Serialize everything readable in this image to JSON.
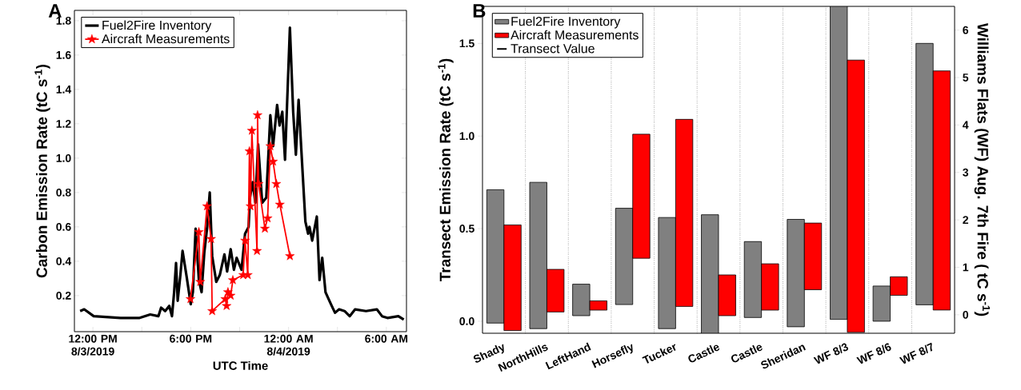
{
  "chart_data": [
    {
      "type": "line",
      "title": "A",
      "xlabel": "UTC Time",
      "ylabel": "Carbon Emission Rate (tC s$^{-1}$)",
      "xlim": [
        "2019-08-03T10:52",
        "2019-08-04T07:14"
      ],
      "xticks": [
        {
          "value": "2019-08-03T12:00",
          "label": "12:00 PM 8/3/2019"
        },
        {
          "value": "2019-08-03T15:00",
          "label": null
        },
        {
          "value": "2019-08-03T18:00",
          "label": "6:00 PM"
        },
        {
          "value": "2019-08-03T21:00",
          "label": null
        },
        {
          "value": "2019-08-04T00:00",
          "label": "12:00 AM 8/4/2019"
        },
        {
          "value": "2019-08-04T03:00",
          "label": null
        },
        {
          "value": "2019-08-04T06:00",
          "label": "6:00 AM"
        }
      ],
      "ylim": [
        -0.01,
        1.86
      ],
      "yticks": [
        0.2,
        0.4,
        0.6,
        0.8,
        {
          "value": 1.0,
          "label": "1.0"
        },
        1.2,
        1.4,
        1.6,
        1.8
      ],
      "legend": "top left",
      "grid": false,
      "series": [
        {
          "name": "Fuel2Fire Inventory",
          "color": "#000000",
          "type": "line",
          "marker": "none",
          "x": [
            "2019-08-03T11:13",
            "2019-08-03T11:28",
            "2019-08-03T12:03",
            "2019-08-03T13:42",
            "2019-08-03T14:52",
            "2019-08-03T15:31",
            "2019-08-03T16:01",
            "2019-08-03T16:11",
            "2019-08-03T16:26",
            "2019-08-03T16:41",
            "2019-08-03T16:51",
            "2019-08-03T16:59",
            "2019-08-03T17:06",
            "2019-08-03T17:12",
            "2019-08-03T17:22",
            "2019-08-03T17:30",
            "2019-08-03T17:45",
            "2019-08-03T18:00",
            "2019-08-03T18:08",
            "2019-08-03T18:18",
            "2019-08-03T18:30",
            "2019-08-03T18:40",
            "2019-08-03T18:50",
            "2019-08-03T19:00",
            "2019-08-03T19:10",
            "2019-08-03T19:19",
            "2019-08-03T19:34",
            "2019-08-03T19:47",
            "2019-08-03T20:04",
            "2019-08-03T20:14",
            "2019-08-03T20:27",
            "2019-08-03T20:39",
            "2019-08-03T20:49",
            "2019-08-03T21:07",
            "2019-08-03T21:20",
            "2019-08-03T21:33",
            "2019-08-03T21:38",
            "2019-08-03T21:48",
            "2019-08-03T21:58",
            "2019-08-03T22:08",
            "2019-08-03T22:23",
            "2019-08-03T22:38",
            "2019-08-03T22:53",
            "2019-08-03T23:03",
            "2019-08-03T23:18",
            "2019-08-03T23:27",
            "2019-08-03T23:37",
            "2019-08-03T23:47",
            "2019-08-04T00:05",
            "2019-08-04T00:17",
            "2019-08-04T00:27",
            "2019-08-04T00:37",
            "2019-08-04T00:47",
            "2019-08-04T01:02",
            "2019-08-04T01:12",
            "2019-08-04T01:17",
            "2019-08-04T01:27",
            "2019-08-04T01:44",
            "2019-08-04T01:54",
            "2019-08-04T02:04",
            "2019-08-04T02:16",
            "2019-08-04T02:36",
            "2019-08-04T02:51",
            "2019-08-04T03:06",
            "2019-08-04T03:26",
            "2019-08-04T03:45",
            "2019-08-04T04:05",
            "2019-08-04T04:45",
            "2019-08-04T05:25",
            "2019-08-04T05:44",
            "2019-08-04T06:04",
            "2019-08-04T06:44",
            "2019-08-04T07:04"
          ],
          "values": [
            0.11,
            0.12,
            0.08,
            0.07,
            0.07,
            0.09,
            0.08,
            0.13,
            0.11,
            0.14,
            0.08,
            0.22,
            0.39,
            0.17,
            0.32,
            0.46,
            0.31,
            0.15,
            0.22,
            0.59,
            0.29,
            0.22,
            0.45,
            0.59,
            0.8,
            0.43,
            0.28,
            0.32,
            0.44,
            0.34,
            0.47,
            0.35,
            0.42,
            0.35,
            0.56,
            0.6,
            0.77,
            0.86,
            0.74,
            1.08,
            0.74,
            0.77,
            1.25,
            1.07,
            1.31,
            1.19,
            1.27,
            0.99,
            1.76,
            1.27,
            1.02,
            1.34,
            1.05,
            0.63,
            0.56,
            0.6,
            0.52,
            0.66,
            0.29,
            0.42,
            0.22,
            0.15,
            0.1,
            0.12,
            0.11,
            0.08,
            0.12,
            0.11,
            0.12,
            0.08,
            0.07,
            0.08,
            0.06
          ]
        },
        {
          "name": "Aircraft Measurements",
          "color": "#ff0000",
          "type": "line",
          "marker": "star",
          "x": [
            "2019-08-03T17:59",
            "2019-08-03T18:30",
            "2019-08-03T18:35",
            "2019-08-03T19:00",
            "2019-08-03T19:15",
            "2019-08-03T19:19",
            "2019-08-03T20:07",
            "2019-08-03T20:12",
            "2019-08-03T20:17",
            "2019-08-03T20:27",
            "2019-08-03T20:35",
            "2019-08-03T21:13",
            "2019-08-03T21:20",
            "2019-08-03T21:30",
            "2019-08-03T21:36",
            "2019-08-03T21:40",
            "2019-08-03T21:45",
            "2019-08-03T22:04",
            "2019-08-03T22:06",
            "2019-08-03T22:10",
            "2019-08-03T22:33",
            "2019-08-03T22:43",
            "2019-08-03T22:53",
            "2019-08-03T23:03",
            "2019-08-03T23:15",
            "2019-08-03T23:28",
            "2019-08-04T00:05"
          ],
          "values": [
            0.18,
            0.57,
            0.28,
            0.72,
            0.53,
            0.11,
            0.18,
            0.14,
            0.22,
            0.2,
            0.29,
            0.32,
            0.52,
            0.32,
            1.04,
            0.72,
            1.16,
            0.46,
            1.25,
            0.85,
            0.59,
            0.65,
            1.07,
            0.98,
            0.85,
            0.73,
            0.43
          ]
        }
      ]
    },
    {
      "type": "bar",
      "title": "B",
      "ylabel": "Transect Emission Rate (tC s$^{-1}$)",
      "y2label": "Williams Flats (WF) Aug. 7th Fire ( tC s$^{-1}$)",
      "categories": [
        "Shady",
        "NorthHills",
        "LeftHand",
        "Horsefly",
        "Tucker",
        "Castle",
        "Castle",
        "Sheridan",
        "WF 8/3",
        "WF 8/6",
        "WF 8/7"
      ],
      "ylim": [
        -0.065,
        1.7
      ],
      "yticks": [
        {
          "value": 0,
          "label": "0.0"
        },
        {
          "value": 0.5,
          "label": "0.5"
        },
        {
          "value": 1.0,
          "label": "1.0"
        },
        {
          "value": 1.5,
          "label": "1.5"
        }
      ],
      "y2lim": [
        -0.39,
        6.5
      ],
      "y2ticks": [
        0,
        1,
        2,
        3,
        4,
        5,
        6
      ],
      "legend": "top left",
      "grid": "x",
      "series": [
        {
          "name": "Fuel2Fire Inventory",
          "color": "#808080",
          "base": [
            -0.01,
            -0.04,
            0.03,
            0.09,
            -0.04,
            -0.065,
            0.02,
            -0.03,
            0.01,
            0.0,
            null
          ],
          "values": [
            0.72,
            0.79,
            0.17,
            0.52,
            0.6,
            0.64,
            0.41,
            0.58,
            1.69,
            0.19,
            null
          ]
        },
        {
          "name": "Aircraft Measurements",
          "color": "#ff0000",
          "base": [
            -0.05,
            0.05,
            0.06,
            0.34,
            0.08,
            0.03,
            0.06,
            0.17,
            -0.06,
            0.14,
            null
          ],
          "values": [
            0.57,
            0.23,
            0.05,
            0.67,
            1.01,
            0.22,
            0.25,
            0.36,
            1.47,
            0.1,
            null
          ]
        },
        {
          "name": "Transect Value",
          "color": "#000000",
          "type": "scatter",
          "values": [
            null,
            null,
            null,
            null,
            null,
            null,
            null,
            null,
            null,
            null,
            null
          ]
        },
        {
          "color": "#808080",
          "axis": "y2",
          "base": [
            null,
            null,
            null,
            null,
            null,
            null,
            null,
            null,
            null,
            null,
            0.21
          ],
          "values": [
            null,
            null,
            null,
            null,
            null,
            null,
            null,
            null,
            null,
            null,
            5.51
          ]
        },
        {
          "color": "#ff0000",
          "axis": "y2",
          "base": [
            null,
            null,
            null,
            null,
            null,
            null,
            null,
            null,
            null,
            null,
            0.1
          ],
          "values": [
            null,
            null,
            null,
            null,
            null,
            null,
            null,
            null,
            null,
            null,
            5.04
          ]
        }
      ]
    }
  ]
}
